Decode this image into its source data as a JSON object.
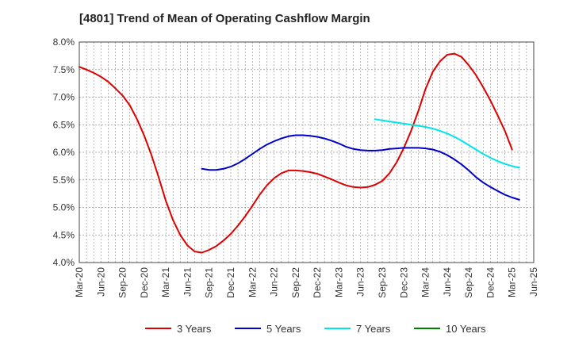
{
  "chart_data": {
    "type": "line",
    "title": "[4801]  Trend of Mean of Operating Cashflow Margin",
    "xlabel": "",
    "ylabel": "",
    "ylim": [
      4.0,
      8.0
    ],
    "yticks": [
      "4.0%",
      "4.5%",
      "5.0%",
      "5.5%",
      "6.0%",
      "6.5%",
      "7.0%",
      "7.5%",
      "8.0%"
    ],
    "xticks": [
      "Mar-20",
      "Jun-20",
      "Sep-20",
      "Dec-20",
      "Mar-21",
      "Jun-21",
      "Sep-21",
      "Dec-21",
      "Mar-22",
      "Jun-22",
      "Sep-22",
      "Dec-22",
      "Mar-23",
      "Jun-23",
      "Sep-23",
      "Dec-23",
      "Mar-24",
      "Jun-24",
      "Sep-24",
      "Dec-24",
      "Mar-25",
      "Jun-25"
    ],
    "grid": true,
    "legend_position": "bottom",
    "series": [
      {
        "name": "3 Years",
        "color": "#dd0000",
        "points": [
          [
            "Mar-20",
            7.55
          ],
          [
            "Apr-20",
            7.5
          ],
          [
            "May-20",
            7.44
          ],
          [
            "Jun-20",
            7.37
          ],
          [
            "Jul-20",
            7.28
          ],
          [
            "Aug-20",
            7.16
          ],
          [
            "Sep-20",
            7.03
          ],
          [
            "Oct-20",
            6.85
          ],
          [
            "Nov-20",
            6.6
          ],
          [
            "Dec-20",
            6.3
          ],
          [
            "Jan-21",
            5.95
          ],
          [
            "Feb-21",
            5.55
          ],
          [
            "Mar-21",
            5.12
          ],
          [
            "Apr-21",
            4.77
          ],
          [
            "May-21",
            4.5
          ],
          [
            "Jun-21",
            4.31
          ],
          [
            "Jul-21",
            4.2
          ],
          [
            "Aug-21",
            4.18
          ],
          [
            "Sep-21",
            4.23
          ],
          [
            "Oct-21",
            4.3
          ],
          [
            "Nov-21",
            4.4
          ],
          [
            "Dec-21",
            4.52
          ],
          [
            "Jan-22",
            4.67
          ],
          [
            "Feb-22",
            4.84
          ],
          [
            "Mar-22",
            5.03
          ],
          [
            "Apr-22",
            5.23
          ],
          [
            "May-22",
            5.4
          ],
          [
            "Jun-22",
            5.53
          ],
          [
            "Jul-22",
            5.62
          ],
          [
            "Aug-22",
            5.67
          ],
          [
            "Sep-22",
            5.67
          ],
          [
            "Oct-22",
            5.66
          ],
          [
            "Nov-22",
            5.64
          ],
          [
            "Dec-22",
            5.61
          ],
          [
            "Jan-23",
            5.56
          ],
          [
            "Feb-23",
            5.51
          ],
          [
            "Mar-23",
            5.45
          ],
          [
            "Apr-23",
            5.4
          ],
          [
            "May-23",
            5.37
          ],
          [
            "Jun-23",
            5.36
          ],
          [
            "Jul-23",
            5.37
          ],
          [
            "Aug-23",
            5.41
          ],
          [
            "Sep-23",
            5.48
          ],
          [
            "Oct-23",
            5.62
          ],
          [
            "Nov-23",
            5.82
          ],
          [
            "Dec-23",
            6.08
          ],
          [
            "Jan-24",
            6.39
          ],
          [
            "Feb-24",
            6.75
          ],
          [
            "Mar-24",
            7.15
          ],
          [
            "Apr-24",
            7.46
          ],
          [
            "May-24",
            7.65
          ],
          [
            "Jun-24",
            7.77
          ],
          [
            "Jul-24",
            7.79
          ],
          [
            "Aug-24",
            7.73
          ],
          [
            "Sep-24",
            7.58
          ],
          [
            "Oct-24",
            7.4
          ],
          [
            "Nov-24",
            7.18
          ],
          [
            "Dec-24",
            6.94
          ],
          [
            "Jan-25",
            6.67
          ],
          [
            "Feb-25",
            6.39
          ],
          [
            "Mar-25",
            6.05
          ]
        ]
      },
      {
        "name": "5 Years",
        "color": "#0000cc",
        "points": [
          [
            "Aug-21",
            5.7
          ],
          [
            "Sep-21",
            5.68
          ],
          [
            "Oct-21",
            5.68
          ],
          [
            "Nov-21",
            5.7
          ],
          [
            "Dec-21",
            5.74
          ],
          [
            "Jan-22",
            5.8
          ],
          [
            "Feb-22",
            5.88
          ],
          [
            "Mar-22",
            5.97
          ],
          [
            "Apr-22",
            6.06
          ],
          [
            "May-22",
            6.14
          ],
          [
            "Jun-22",
            6.2
          ],
          [
            "Jul-22",
            6.25
          ],
          [
            "Aug-22",
            6.29
          ],
          [
            "Sep-22",
            6.31
          ],
          [
            "Oct-22",
            6.31
          ],
          [
            "Nov-22",
            6.3
          ],
          [
            "Dec-22",
            6.28
          ],
          [
            "Jan-23",
            6.25
          ],
          [
            "Feb-23",
            6.21
          ],
          [
            "Mar-23",
            6.16
          ],
          [
            "Apr-23",
            6.1
          ],
          [
            "May-23",
            6.06
          ],
          [
            "Jun-23",
            6.04
          ],
          [
            "Jul-23",
            6.03
          ],
          [
            "Aug-23",
            6.03
          ],
          [
            "Sep-23",
            6.04
          ],
          [
            "Oct-23",
            6.06
          ],
          [
            "Nov-23",
            6.07
          ],
          [
            "Dec-23",
            6.08
          ],
          [
            "Jan-24",
            6.08
          ],
          [
            "Feb-24",
            6.08
          ],
          [
            "Mar-24",
            6.07
          ],
          [
            "Apr-24",
            6.05
          ],
          [
            "May-24",
            6.01
          ],
          [
            "Jun-24",
            5.95
          ],
          [
            "Jul-24",
            5.87
          ],
          [
            "Aug-24",
            5.78
          ],
          [
            "Sep-24",
            5.67
          ],
          [
            "Oct-24",
            5.55
          ],
          [
            "Nov-24",
            5.45
          ],
          [
            "Dec-24",
            5.37
          ],
          [
            "Jan-25",
            5.3
          ],
          [
            "Feb-25",
            5.23
          ],
          [
            "Mar-25",
            5.18
          ],
          [
            "Apr-25",
            5.14
          ]
        ]
      },
      {
        "name": "7 Years",
        "color": "#00e5e5",
        "points": [
          [
            "Aug-23",
            6.6
          ],
          [
            "Sep-23",
            6.58
          ],
          [
            "Oct-23",
            6.56
          ],
          [
            "Nov-23",
            6.54
          ],
          [
            "Dec-23",
            6.52
          ],
          [
            "Jan-24",
            6.5
          ],
          [
            "Feb-24",
            6.48
          ],
          [
            "Mar-24",
            6.46
          ],
          [
            "Apr-24",
            6.43
          ],
          [
            "May-24",
            6.39
          ],
          [
            "Jun-24",
            6.34
          ],
          [
            "Jul-24",
            6.28
          ],
          [
            "Aug-24",
            6.21
          ],
          [
            "Sep-24",
            6.13
          ],
          [
            "Oct-24",
            6.05
          ],
          [
            "Nov-24",
            5.97
          ],
          [
            "Dec-24",
            5.9
          ],
          [
            "Jan-25",
            5.84
          ],
          [
            "Feb-25",
            5.79
          ],
          [
            "Mar-25",
            5.75
          ],
          [
            "Apr-25",
            5.72
          ]
        ]
      },
      {
        "name": "10 Years",
        "color": "#008000",
        "points": []
      }
    ]
  }
}
